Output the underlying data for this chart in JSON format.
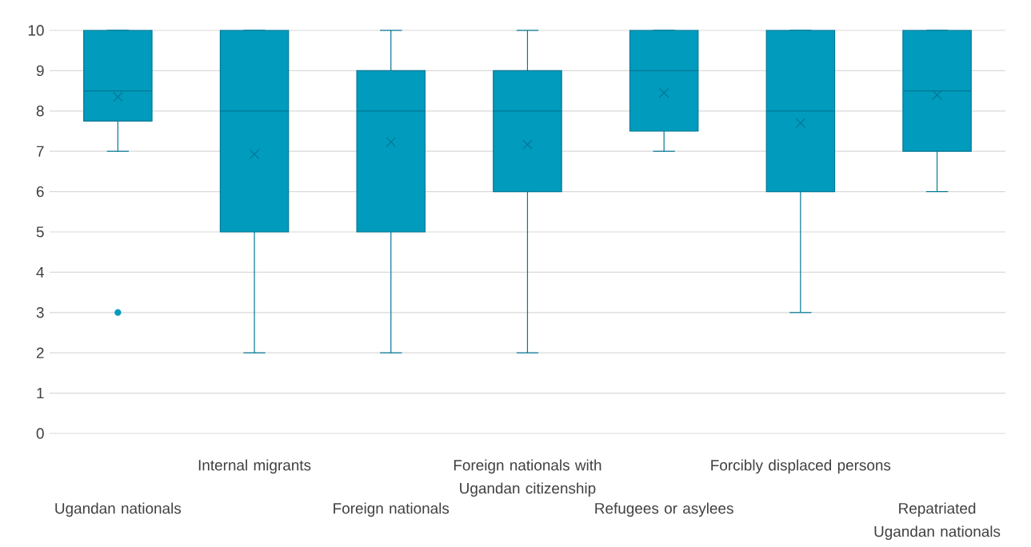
{
  "chart_data": {
    "type": "box",
    "categories": [
      "Ugandan nationals",
      "Internal migrants",
      "Foreign nationals",
      "Foreign nationals with Ugandan citizenship",
      "Refugees or asylees",
      "Forcibly displaced persons",
      "Repatriated Ugandan nationals"
    ],
    "boxes": [
      {
        "low": 7,
        "q1": 7.75,
        "median": 8.5,
        "q3": 10,
        "high": 10,
        "mean": 8.35,
        "outliers": [
          3
        ]
      },
      {
        "low": 2,
        "q1": 5,
        "median": 8,
        "q3": 10,
        "high": 10,
        "mean": 6.93
      },
      {
        "low": 2,
        "q1": 5,
        "median": 8,
        "q3": 9,
        "high": 10,
        "mean": 7.23
      },
      {
        "low": 2,
        "q1": 6,
        "median": 8,
        "q3": 9,
        "high": 10,
        "mean": 7.17
      },
      {
        "low": 7,
        "q1": 7.5,
        "median": 9,
        "q3": 10,
        "high": 10,
        "mean": 8.45
      },
      {
        "low": 3,
        "q1": 6,
        "median": 8,
        "q3": 10,
        "high": 10,
        "mean": 7.7
      },
      {
        "low": 6,
        "q1": 7,
        "median": 8.5,
        "q3": 10,
        "high": 10,
        "mean": 8.4
      }
    ],
    "color": "#009bbd",
    "ylim": [
      0,
      10
    ],
    "yticks": [
      0,
      1,
      2,
      3,
      4,
      5,
      6,
      7,
      8,
      9,
      10
    ],
    "grid": "y"
  }
}
